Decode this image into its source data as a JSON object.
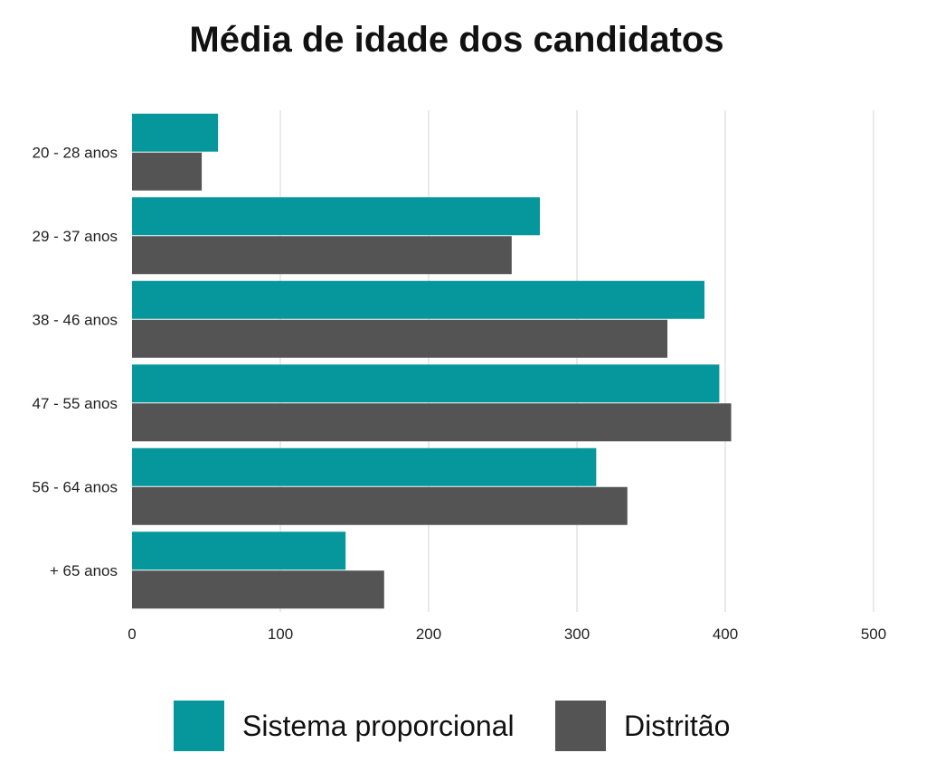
{
  "chart_data": {
    "type": "bar",
    "orientation": "horizontal",
    "title": "Média de idade dos candidatos",
    "categories": [
      "20 - 28 anos",
      "29 - 37 anos",
      "38 - 46 anos",
      "47 - 55 anos",
      "56 - 64 anos",
      "+ 65 anos"
    ],
    "series": [
      {
        "name": "Sistema proporcional",
        "color": "#05979b",
        "values": [
          58,
          275,
          386,
          396,
          313,
          144
        ]
      },
      {
        "name": "Distritão",
        "color": "#545454",
        "values": [
          47,
          256,
          361,
          404,
          334,
          170
        ]
      }
    ],
    "xlim": [
      0,
      500
    ],
    "xticks": [
      0,
      100,
      200,
      300,
      400,
      500
    ],
    "grid": true,
    "legend_position": "bottom"
  }
}
